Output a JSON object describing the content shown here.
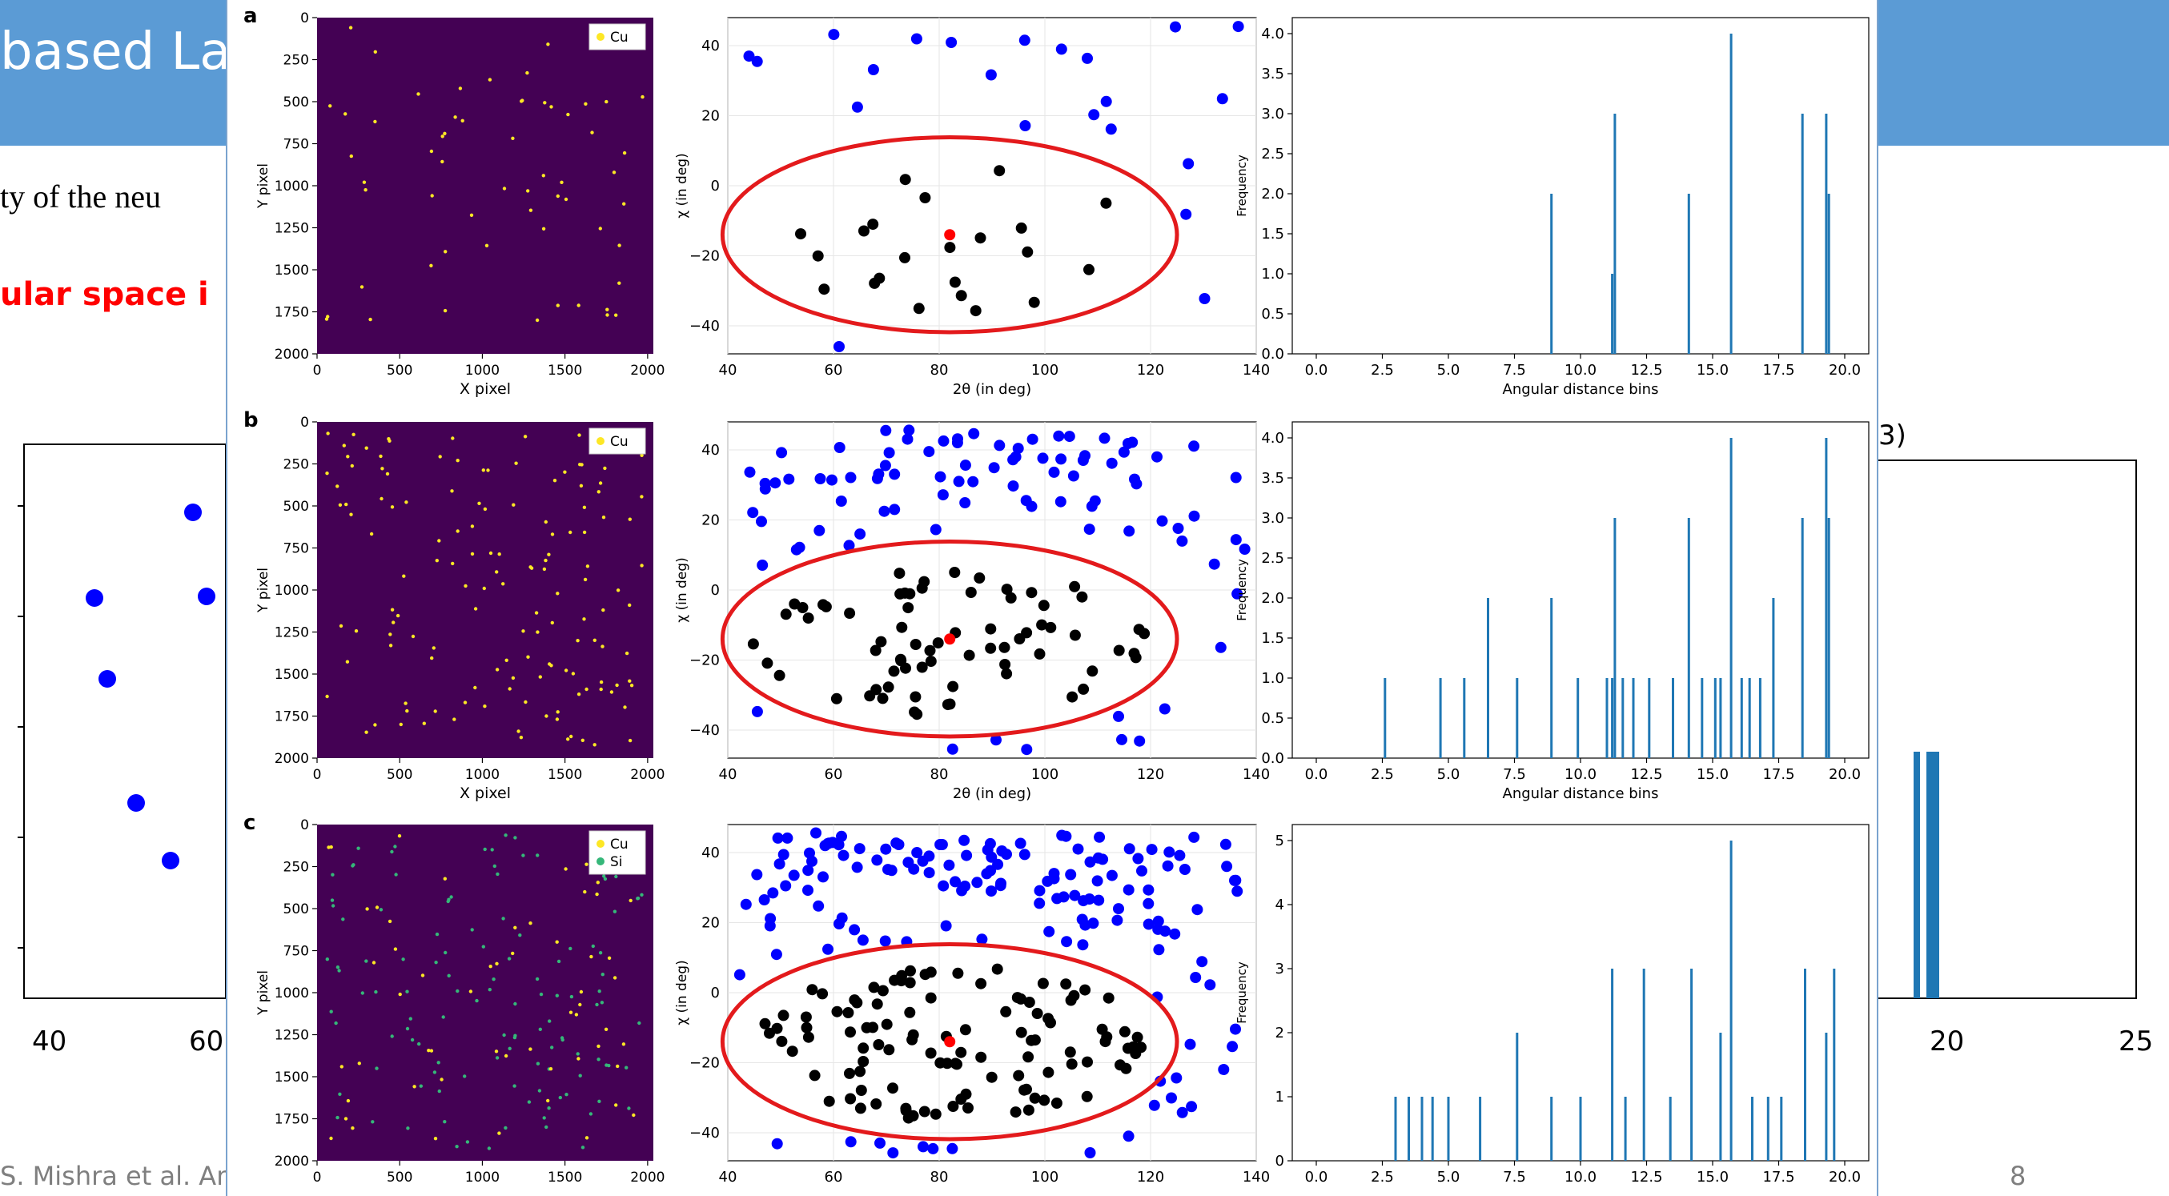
{
  "slide": {
    "title_fragment": "based La",
    "text_line1": "ty of the neu",
    "text_line2_red": "ular space i",
    "right_fragment": "3)",
    "footer_fragment": "S. Mishra et al. Amm Mi",
    "page_number": "8",
    "left_plot_ticks": [
      "40",
      "60"
    ],
    "right_plot_ticks": [
      "20",
      "25"
    ]
  },
  "panels": [
    {
      "label": "a",
      "legend": [
        "Cu"
      ],
      "laue": {
        "xlabel": "X pixel",
        "ylabel": "Y pixel",
        "xticks": [
          "0",
          "500",
          "1000",
          "1500",
          "2000"
        ],
        "yticks": [
          "0",
          "250",
          "500",
          "750",
          "1000",
          "1250",
          "1500",
          "1750",
          "2000"
        ]
      },
      "polar": {
        "xlabel": "2θ (in deg)",
        "ylabel": "χ (in deg)",
        "xticks": [
          "40",
          "60",
          "80",
          "100",
          "120",
          "140"
        ],
        "yticks": [
          "40",
          "20",
          "0",
          "−20",
          "−40"
        ]
      },
      "hist": {
        "xlabel": "Angular distance bins",
        "ylabel": "Frequency",
        "xticks": [
          "0.0",
          "2.5",
          "5.0",
          "7.5",
          "10.0",
          "12.5",
          "15.0",
          "17.5",
          "20.0"
        ],
        "yticks": [
          "4.0",
          "3.5",
          "3.0",
          "2.5",
          "2.0",
          "1.5",
          "1.0",
          "0.5",
          "0.0"
        ]
      }
    },
    {
      "label": "b",
      "legend": [
        "Cu"
      ],
      "laue": {
        "xlabel": "X pixel",
        "ylabel": "Y pixel",
        "xticks": [
          "0",
          "500",
          "1000",
          "1500",
          "2000"
        ],
        "yticks": [
          "0",
          "250",
          "500",
          "750",
          "1000",
          "1250",
          "1500",
          "1750",
          "2000"
        ]
      },
      "polar": {
        "xlabel": "2θ (in deg)",
        "ylabel": "χ (in deg)",
        "xticks": [
          "40",
          "60",
          "80",
          "100",
          "120",
          "140"
        ],
        "yticks": [
          "40",
          "20",
          "0",
          "−20",
          "−40"
        ]
      },
      "hist": {
        "xlabel": "Angular distance bins",
        "ylabel": "Frequency",
        "xticks": [
          "0.0",
          "2.5",
          "5.0",
          "7.5",
          "10.0",
          "12.5",
          "15.0",
          "17.5",
          "20.0"
        ],
        "yticks": [
          "4.0",
          "3.5",
          "3.0",
          "2.5",
          "2.0",
          "1.5",
          "1.0",
          "0.5",
          "0.0"
        ]
      }
    },
    {
      "label": "c",
      "legend": [
        "Cu",
        "Si"
      ],
      "laue": {
        "xlabel": "",
        "ylabel": "Y pixel",
        "xticks": [
          "0",
          "500",
          "1000",
          "1500",
          "2000"
        ],
        "yticks": [
          "0",
          "250",
          "500",
          "750",
          "1000",
          "1250",
          "1500",
          "1750",
          "2000"
        ]
      },
      "polar": {
        "xlabel": "",
        "ylabel": "χ (in deg)",
        "xticks": [
          "40",
          "60",
          "80",
          "100",
          "120",
          "140"
        ],
        "yticks": [
          "40",
          "20",
          "0",
          "−20",
          "−40"
        ]
      },
      "hist": {
        "xlabel": "",
        "ylabel": "Frequency",
        "xticks": [
          "0.0",
          "2.5",
          "5.0",
          "7.5",
          "10.0",
          "12.5",
          "15.0",
          "17.5",
          "20.0"
        ],
        "yticks": [
          "5",
          "4",
          "3",
          "2",
          "1",
          "0"
        ]
      }
    }
  ],
  "chart_data": [
    {
      "type": "bar",
      "panel": "a",
      "xlabel": "Angular distance bins",
      "ylabel": "Frequency",
      "xlim": [
        0,
        20
      ],
      "ylim": [
        0,
        4.0
      ],
      "x": [
        8.9,
        11.2,
        11.3,
        14.1,
        15.7,
        18.4,
        19.3,
        19.4
      ],
      "values": [
        2,
        1,
        3,
        2,
        4,
        3,
        3,
        2
      ]
    },
    {
      "type": "bar",
      "panel": "b",
      "xlabel": "Angular distance bins",
      "ylabel": "Frequency",
      "xlim": [
        0,
        20
      ],
      "ylim": [
        0,
        4.0
      ],
      "x": [
        2.6,
        4.7,
        5.6,
        6.5,
        7.6,
        8.9,
        9.9,
        11.0,
        11.2,
        11.3,
        11.6,
        12.0,
        12.6,
        13.5,
        14.1,
        14.6,
        15.1,
        15.3,
        15.7,
        16.1,
        16.4,
        16.8,
        17.3,
        18.4,
        19.3,
        19.4
      ],
      "values": [
        1,
        1,
        1,
        2,
        1,
        2,
        1,
        1,
        1,
        3,
        1,
        1,
        1,
        1,
        3,
        1,
        1,
        1,
        4,
        1,
        1,
        1,
        2,
        3,
        4,
        3
      ]
    },
    {
      "type": "bar",
      "panel": "c",
      "xlabel": "",
      "ylabel": "Frequency",
      "xlim": [
        0,
        20
      ],
      "ylim": [
        0,
        5
      ],
      "x": [
        3.0,
        3.5,
        4.0,
        4.4,
        5.0,
        6.2,
        7.6,
        8.9,
        10.0,
        11.2,
        11.7,
        12.4,
        13.4,
        14.2,
        15.3,
        15.7,
        16.5,
        17.1,
        17.6,
        18.5,
        19.3,
        19.6
      ],
      "values": [
        1,
        1,
        1,
        1,
        1,
        1,
        2,
        1,
        1,
        3,
        1,
        3,
        1,
        3,
        2,
        5,
        1,
        1,
        1,
        3,
        2,
        3
      ]
    }
  ]
}
